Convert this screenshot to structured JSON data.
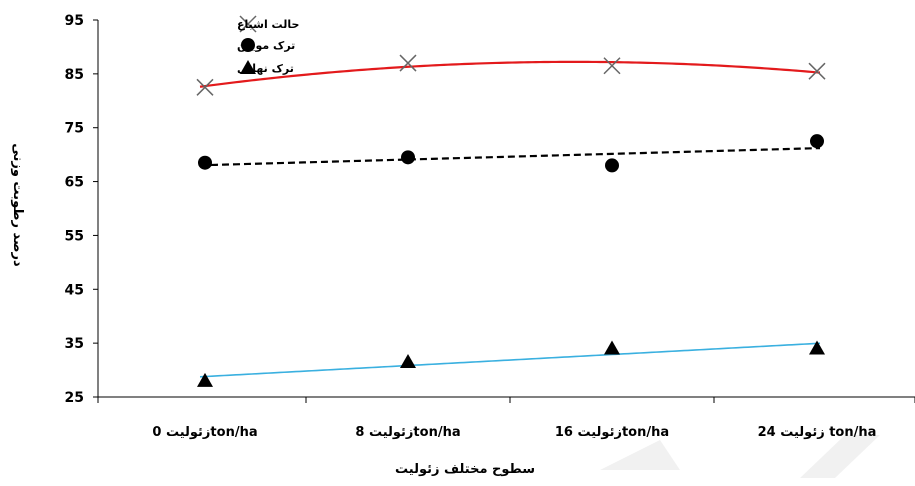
{
  "chart_data": {
    "type": "scatter",
    "title": "",
    "xlabel": "سطوح مختلف زئولیت",
    "ylabel": "درصد رطوبت وزنی",
    "categories": [
      "زئولیت 0ton/ha",
      "زئولیت 8ton/ha",
      "زئولیت 16ton/ha",
      "زئولیت 24 ton/ha"
    ],
    "ylim": [
      25,
      95
    ],
    "yticks": [
      25,
      35,
      45,
      55,
      65,
      75,
      85,
      95
    ],
    "grid": false,
    "legend_position": "top-left",
    "series": [
      {
        "name": "حالت اشباع",
        "marker": "x",
        "color": "#e31a1c",
        "marker_color": "#666666",
        "trendline": "polynomial",
        "values": [
          82.5,
          87,
          86.5,
          85.5
        ]
      },
      {
        "name": "ترک مویین",
        "marker": "circle",
        "color": "#000000",
        "marker_color": "#000000",
        "trendline": "linear-dashed",
        "values": [
          68.5,
          69.5,
          68,
          72.5
        ]
      },
      {
        "name": "ترک نهایی",
        "marker": "triangle",
        "color": "#3ab0e0",
        "marker_color": "#000000",
        "trendline": "linear",
        "values": [
          28,
          31.5,
          34,
          34
        ]
      }
    ]
  }
}
